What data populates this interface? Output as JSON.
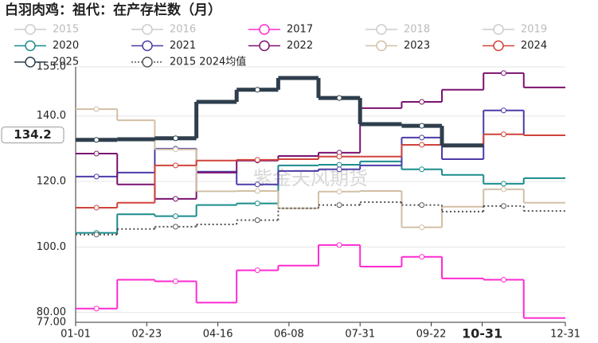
{
  "chart_data": {
    "type": "step-line",
    "title": "白羽肉鸡：祖代：在产存栏数（月）",
    "watermark": "紫金天风期货",
    "legend_hidden": [
      "2015",
      "2016",
      "2018",
      "2019"
    ],
    "x": [
      0,
      31,
      59,
      90,
      120,
      151,
      181,
      212,
      243,
      273,
      304,
      334
    ],
    "xlim": [
      0,
      365
    ],
    "xticks": [
      {
        "value": 0,
        "label": "01-01"
      },
      {
        "value": 53,
        "label": "02-23"
      },
      {
        "value": 106,
        "label": "04-16"
      },
      {
        "value": 159,
        "label": "06-08"
      },
      {
        "value": 212,
        "label": "07-31"
      },
      {
        "value": 265,
        "label": "09-22"
      },
      {
        "value": 303,
        "label": "10-31"
      },
      {
        "value": 365,
        "label": "12-31"
      }
    ],
    "ylim": [
      77,
      155
    ],
    "yticks": [
      {
        "value": 77,
        "label": "77.00"
      },
      {
        "value": 80,
        "label": "80.00"
      },
      {
        "value": 100,
        "label": "100.0"
      },
      {
        "value": 120,
        "label": "120.0"
      },
      {
        "value": 140,
        "label": "140.0"
      },
      {
        "value": 155,
        "label": "155.0"
      }
    ],
    "highlight_value": 134.2,
    "grid": true,
    "series": [
      {
        "name": "2017",
        "color": "#ff2bd0",
        "values": [
          81.2,
          90,
          89.5,
          83,
          92.9,
          94.3,
          100.6,
          94,
          97,
          90.4,
          90,
          78.3
        ]
      },
      {
        "name": "2020",
        "color": "#1a8c8c",
        "values": [
          104.3,
          110,
          109.4,
          112.8,
          113.3,
          124.9,
          125.1,
          126.1,
          123.7,
          122,
          119.3,
          121
        ]
      },
      {
        "name": "2021",
        "color": "#4b3ca8",
        "values": [
          121.5,
          122.7,
          130,
          123,
          119.1,
          123.2,
          123.7,
          124.9,
          133.4,
          126.8,
          141.7,
          134.1
        ]
      },
      {
        "name": "2022",
        "color": "#7a1270",
        "values": [
          128.5,
          119.1,
          114.7,
          122.7,
          126.4,
          127.8,
          128.8,
          142.4,
          144.3,
          148,
          153.1,
          148.7
        ]
      },
      {
        "name": "2023",
        "color": "#d2bfa6",
        "values": [
          142.1,
          138.7,
          129.8,
          117,
          117.1,
          111.8,
          116.9,
          117.1,
          106,
          112.3,
          117.6,
          113.5
        ]
      },
      {
        "name": "2024",
        "color": "#d0433b",
        "values": [
          112,
          113.5,
          124.9,
          126.4,
          126.6,
          126.8,
          127.6,
          127.6,
          131.2,
          131.2,
          134.4,
          134.1
        ]
      },
      {
        "name": "2025",
        "color": "#2e3e4c",
        "values": [
          132.7,
          132.9,
          133.2,
          144.3,
          148,
          151.6,
          145.5,
          137.5,
          137,
          131,
          null,
          null
        ]
      },
      {
        "name": "2015 2024均值",
        "color": "#555555",
        "dashed": true,
        "values": [
          103.8,
          105.5,
          106.2,
          106.9,
          108.2,
          111.8,
          112.8,
          113.7,
          112.8,
          110.8,
          112.5,
          111
        ]
      }
    ]
  }
}
